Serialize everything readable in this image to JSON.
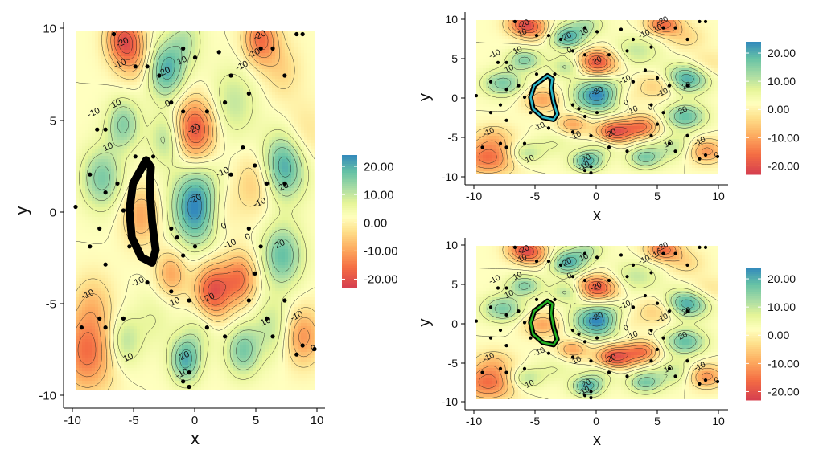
{
  "chart_data": [
    {
      "type": "heatmap",
      "panel": "left",
      "xlabel": "x",
      "ylabel": "y",
      "xlim": [
        -10,
        10
      ],
      "ylim": [
        -10,
        10
      ],
      "xticks": [
        -10,
        -5,
        0,
        5,
        10
      ],
      "yticks": [
        -10,
        -5,
        0,
        5,
        10
      ],
      "legend": {
        "position": "right",
        "labels": [
          "20.00",
          "10.00",
          "0.00",
          "-10.00",
          "-20.00"
        ],
        "range": [
          -23,
          24
        ]
      },
      "contour_labels": [
        "-20",
        "-10",
        "0",
        "10",
        "20"
      ],
      "highlight": {
        "outline_color": "#000000",
        "fill_color": "",
        "label": ""
      }
    },
    {
      "type": "heatmap",
      "panel": "top-right",
      "xlabel": "x",
      "ylabel": "y",
      "xlim": [
        -10,
        10
      ],
      "ylim": [
        -10,
        10
      ],
      "xticks": [
        -10,
        -5,
        0,
        5,
        10
      ],
      "yticks": [
        -10,
        -5,
        0,
        5,
        10
      ],
      "legend": {
        "position": "right",
        "labels": [
          "20.00",
          "10.00",
          "0.00",
          "-10.00",
          "-20.00"
        ],
        "range": [
          -23,
          24
        ]
      },
      "contour_labels": [
        "-20",
        "-10",
        "0",
        "10",
        "20"
      ],
      "highlight": {
        "outline_color": "#000000",
        "fill_color": "#29b6c8",
        "label": ""
      }
    },
    {
      "type": "heatmap",
      "panel": "bottom-right",
      "xlabel": "x",
      "ylabel": "y",
      "xlim": [
        -10,
        10
      ],
      "ylim": [
        -10,
        10
      ],
      "xticks": [
        -10,
        -5,
        0,
        5,
        10
      ],
      "yticks": [
        -10,
        -5,
        0,
        5,
        10
      ],
      "legend": {
        "position": "right",
        "labels": [
          "20.00",
          "10.00",
          "0.00",
          "-10.00",
          "-20.00"
        ],
        "range": [
          -23,
          24
        ]
      },
      "contour_labels": [
        "-20",
        "-10",
        "0",
        "10",
        "20"
      ],
      "highlight": {
        "outline_color": "#000000",
        "fill_color": "#22b021",
        "label": ""
      }
    }
  ],
  "field": {
    "grid": {
      "x_min": -10,
      "x_max": 10,
      "y_min": -10,
      "y_max": 10
    },
    "peaks": [
      [
        -2.4,
        7.8,
        18,
        1.1
      ],
      [
        0.2,
        0.2,
        24,
        1.5
      ],
      [
        -7.8,
        1.8,
        14,
        1.2
      ],
      [
        -6.0,
        4.8,
        13,
        1.0
      ],
      [
        -2.4,
        4.0,
        10,
        1.0
      ],
      [
        7.5,
        2.5,
        20,
        1.3
      ],
      [
        7.3,
        -2.5,
        16,
        1.2
      ],
      [
        3.2,
        6.0,
        8,
        1.4
      ],
      [
        -0.8,
        -8.3,
        18,
        0.9
      ],
      [
        4.0,
        -7.8,
        14,
        1.0
      ],
      [
        6.5,
        -6.5,
        8,
        1.2
      ],
      [
        -6.0,
        -7.3,
        10,
        1.0
      ],
      [
        -0.8,
        9.5,
        8,
        1.0
      ],
      [
        7.3,
        7.8,
        -6,
        1.1
      ],
      [
        5.5,
        9.5,
        -18,
        1.0
      ],
      [
        -6.0,
        9.5,
        -20,
        1.0
      ],
      [
        -4.5,
        -0.3,
        -12,
        1.1
      ],
      [
        0.0,
        4.5,
        -22,
        1.2
      ],
      [
        1.5,
        -4.5,
        -22,
        1.1
      ],
      [
        3.8,
        -3.8,
        -16,
        1.0
      ],
      [
        -2.0,
        -3.5,
        -12,
        0.9
      ],
      [
        -9.0,
        -7.8,
        -18,
        1.6
      ],
      [
        2.0,
        0.0,
        -8,
        1.1
      ],
      [
        5.0,
        1.5,
        -8,
        1.2
      ],
      [
        9.0,
        -7.0,
        -14,
        1.1
      ],
      [
        -8.5,
        -5.0,
        -6,
        1.1
      ],
      [
        -5.0,
        8.5,
        -8,
        1.0
      ],
      [
        9.0,
        4.0,
        -6,
        1.3
      ],
      [
        0.5,
        -6.5,
        6,
        1.0
      ],
      [
        -3.5,
        -6.0,
        4,
        1.2
      ]
    ],
    "points": [
      [
        -6.8,
        9.8
      ],
      [
        -5.0,
        8.0
      ],
      [
        -4.0,
        8.0
      ],
      [
        -3.0,
        7.5
      ],
      [
        -1.0,
        9.0
      ],
      [
        0.0,
        8.5
      ],
      [
        2.0,
        8.8
      ],
      [
        3.0,
        7.5
      ],
      [
        4.5,
        6.5
      ],
      [
        5.5,
        9.0
      ],
      [
        6.5,
        9.0
      ],
      [
        8.5,
        9.8
      ],
      [
        9.0,
        9.8
      ],
      [
        7.5,
        7.5
      ],
      [
        2.5,
        6.0
      ],
      [
        -2.0,
        6.0
      ],
      [
        -1.0,
        5.5
      ],
      [
        1.0,
        5.5
      ],
      [
        -8.2,
        4.5
      ],
      [
        -7.5,
        4.5
      ],
      [
        -5.0,
        3.0
      ],
      [
        -3.5,
        3.0
      ],
      [
        -8.8,
        2.0
      ],
      [
        -7.5,
        1.0
      ],
      [
        -6.5,
        1.5
      ],
      [
        -6.0,
        0.0
      ],
      [
        -10.0,
        0.2
      ],
      [
        -8.0,
        -1.0
      ],
      [
        -5.5,
        -2.0
      ],
      [
        -2.0,
        -1.0
      ],
      [
        -1.5,
        -1.5
      ],
      [
        -1.0,
        -2.5
      ],
      [
        0.0,
        -2.0
      ],
      [
        3.0,
        2.0
      ],
      [
        4.0,
        3.5
      ],
      [
        5.0,
        2.5
      ],
      [
        6.0,
        1.5
      ],
      [
        7.5,
        1.5
      ],
      [
        4.5,
        -1.0
      ],
      [
        5.5,
        -2.0
      ],
      [
        5.0,
        -3.5
      ],
      [
        4.5,
        -5.0
      ],
      [
        6.0,
        -6.0
      ],
      [
        6.5,
        -7.0
      ],
      [
        7.5,
        -5.0
      ],
      [
        9.0,
        -7.5
      ],
      [
        8.5,
        -8.0
      ],
      [
        -8.8,
        -2.0
      ],
      [
        -7.5,
        -3.0
      ],
      [
        -9.5,
        -6.5
      ],
      [
        -8.0,
        -6.0
      ],
      [
        -7.5,
        -6.5
      ],
      [
        -6.0,
        -6.0
      ],
      [
        -4.0,
        -4.0
      ],
      [
        -2.0,
        -4.5
      ],
      [
        -0.5,
        -5.0
      ],
      [
        1.0,
        -6.5
      ],
      [
        2.5,
        -7.0
      ],
      [
        -0.5,
        -9.0
      ],
      [
        -1.0,
        -9.5
      ],
      [
        -0.5,
        -9.8
      ],
      [
        10.0,
        -7.7
      ]
    ],
    "highlight_curve": [
      [
        -4.1,
        2.8
      ],
      [
        -3.7,
        2.4
      ],
      [
        -3.8,
        1.2
      ],
      [
        -3.6,
        -0.6
      ],
      [
        -3.3,
        -2.2
      ],
      [
        -3.6,
        -2.9
      ],
      [
        -4.5,
        -2.6
      ],
      [
        -5.3,
        -1.5
      ],
      [
        -5.5,
        0.0
      ],
      [
        -5.2,
        1.5
      ]
    ]
  }
}
